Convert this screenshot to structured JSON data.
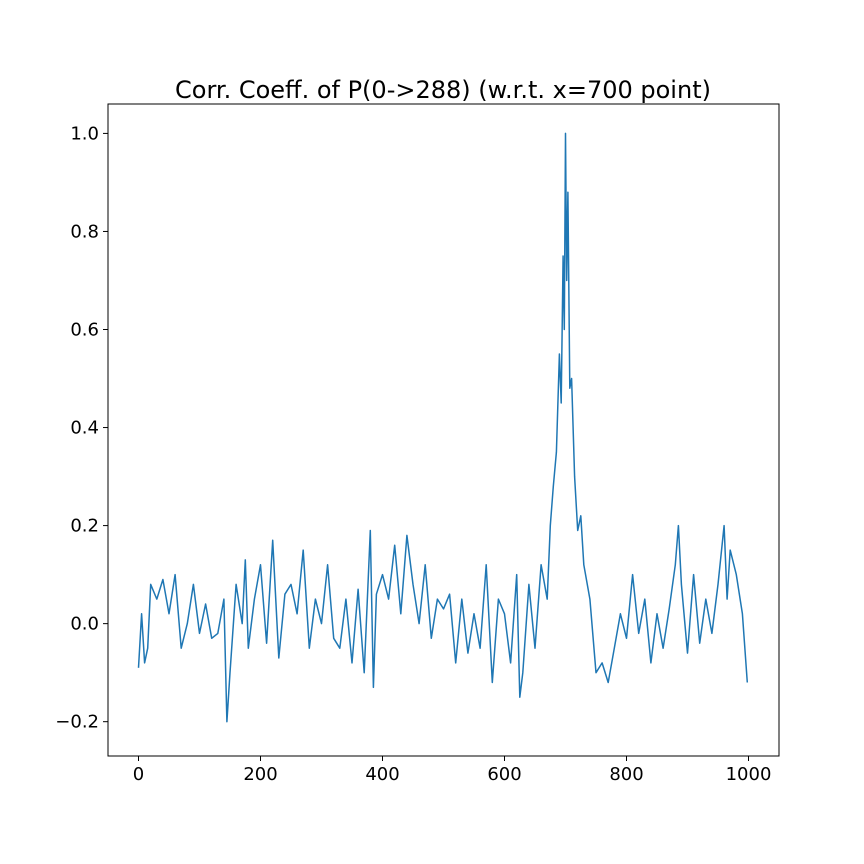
{
  "chart_data": {
    "type": "line",
    "title": "Corr. Coeff. of P(0->288) (w.r.t. x=700 point)",
    "xlabel": "",
    "ylabel": "",
    "xlim": [
      -50,
      1050
    ],
    "ylim": [
      -0.27,
      1.06
    ],
    "x_ticks": [
      0,
      200,
      400,
      600,
      800,
      1000
    ],
    "x_tick_labels": [
      "0",
      "200",
      "400",
      "600",
      "800",
      "1000"
    ],
    "y_ticks": [
      -0.2,
      0.0,
      0.2,
      0.4,
      0.6,
      0.8,
      1.0
    ],
    "y_tick_labels": [
      "−0.2",
      "0.0",
      "0.2",
      "0.4",
      "0.6",
      "0.8",
      "1.0"
    ],
    "grid": false,
    "legend": "none",
    "colors": {
      "series": "#1f77b4",
      "axes": "#000000"
    },
    "series": [
      {
        "color": "#1f77b4",
        "x": [
          0,
          5,
          10,
          15,
          20,
          30,
          40,
          50,
          60,
          70,
          80,
          90,
          100,
          110,
          120,
          130,
          140,
          145,
          150,
          160,
          170,
          175,
          180,
          190,
          200,
          210,
          220,
          230,
          240,
          250,
          260,
          270,
          280,
          290,
          300,
          310,
          320,
          330,
          340,
          350,
          360,
          370,
          380,
          385,
          390,
          400,
          410,
          420,
          430,
          440,
          450,
          460,
          470,
          480,
          490,
          500,
          510,
          520,
          530,
          540,
          550,
          560,
          570,
          580,
          590,
          600,
          610,
          620,
          625,
          630,
          640,
          650,
          660,
          670,
          675,
          680,
          685,
          690,
          693,
          696,
          698,
          700,
          702,
          704,
          707,
          710,
          715,
          720,
          725,
          730,
          740,
          750,
          760,
          770,
          780,
          790,
          800,
          810,
          820,
          830,
          840,
          850,
          860,
          870,
          880,
          885,
          890,
          900,
          910,
          920,
          930,
          940,
          950,
          960,
          965,
          970,
          980,
          990,
          998
        ],
        "y": [
          -0.09,
          0.02,
          -0.08,
          -0.05,
          0.08,
          0.05,
          0.09,
          0.02,
          0.1,
          -0.05,
          0.0,
          0.08,
          -0.02,
          0.04,
          -0.03,
          -0.02,
          0.05,
          -0.2,
          -0.1,
          0.08,
          0.0,
          0.13,
          -0.05,
          0.05,
          0.12,
          -0.04,
          0.17,
          -0.07,
          0.06,
          0.08,
          0.02,
          0.15,
          -0.05,
          0.05,
          0.0,
          0.12,
          -0.03,
          -0.05,
          0.05,
          -0.08,
          0.07,
          -0.1,
          0.19,
          -0.13,
          0.06,
          0.1,
          0.05,
          0.16,
          0.02,
          0.18,
          0.08,
          0.0,
          0.12,
          -0.03,
          0.05,
          0.03,
          0.06,
          -0.08,
          0.05,
          -0.06,
          0.02,
          -0.05,
          0.12,
          -0.12,
          0.05,
          0.02,
          -0.08,
          0.1,
          -0.15,
          -0.1,
          0.08,
          -0.05,
          0.12,
          0.05,
          0.2,
          0.28,
          0.35,
          0.55,
          0.45,
          0.75,
          0.6,
          1.0,
          0.7,
          0.88,
          0.48,
          0.5,
          0.3,
          0.19,
          0.22,
          0.12,
          0.05,
          -0.1,
          -0.08,
          -0.12,
          -0.05,
          0.02,
          -0.03,
          0.1,
          -0.02,
          0.05,
          -0.08,
          0.02,
          -0.05,
          0.03,
          0.12,
          0.2,
          0.08,
          -0.06,
          0.1,
          -0.04,
          0.05,
          -0.02,
          0.08,
          0.2,
          0.05,
          0.15,
          0.1,
          0.02,
          -0.12
        ]
      }
    ]
  }
}
